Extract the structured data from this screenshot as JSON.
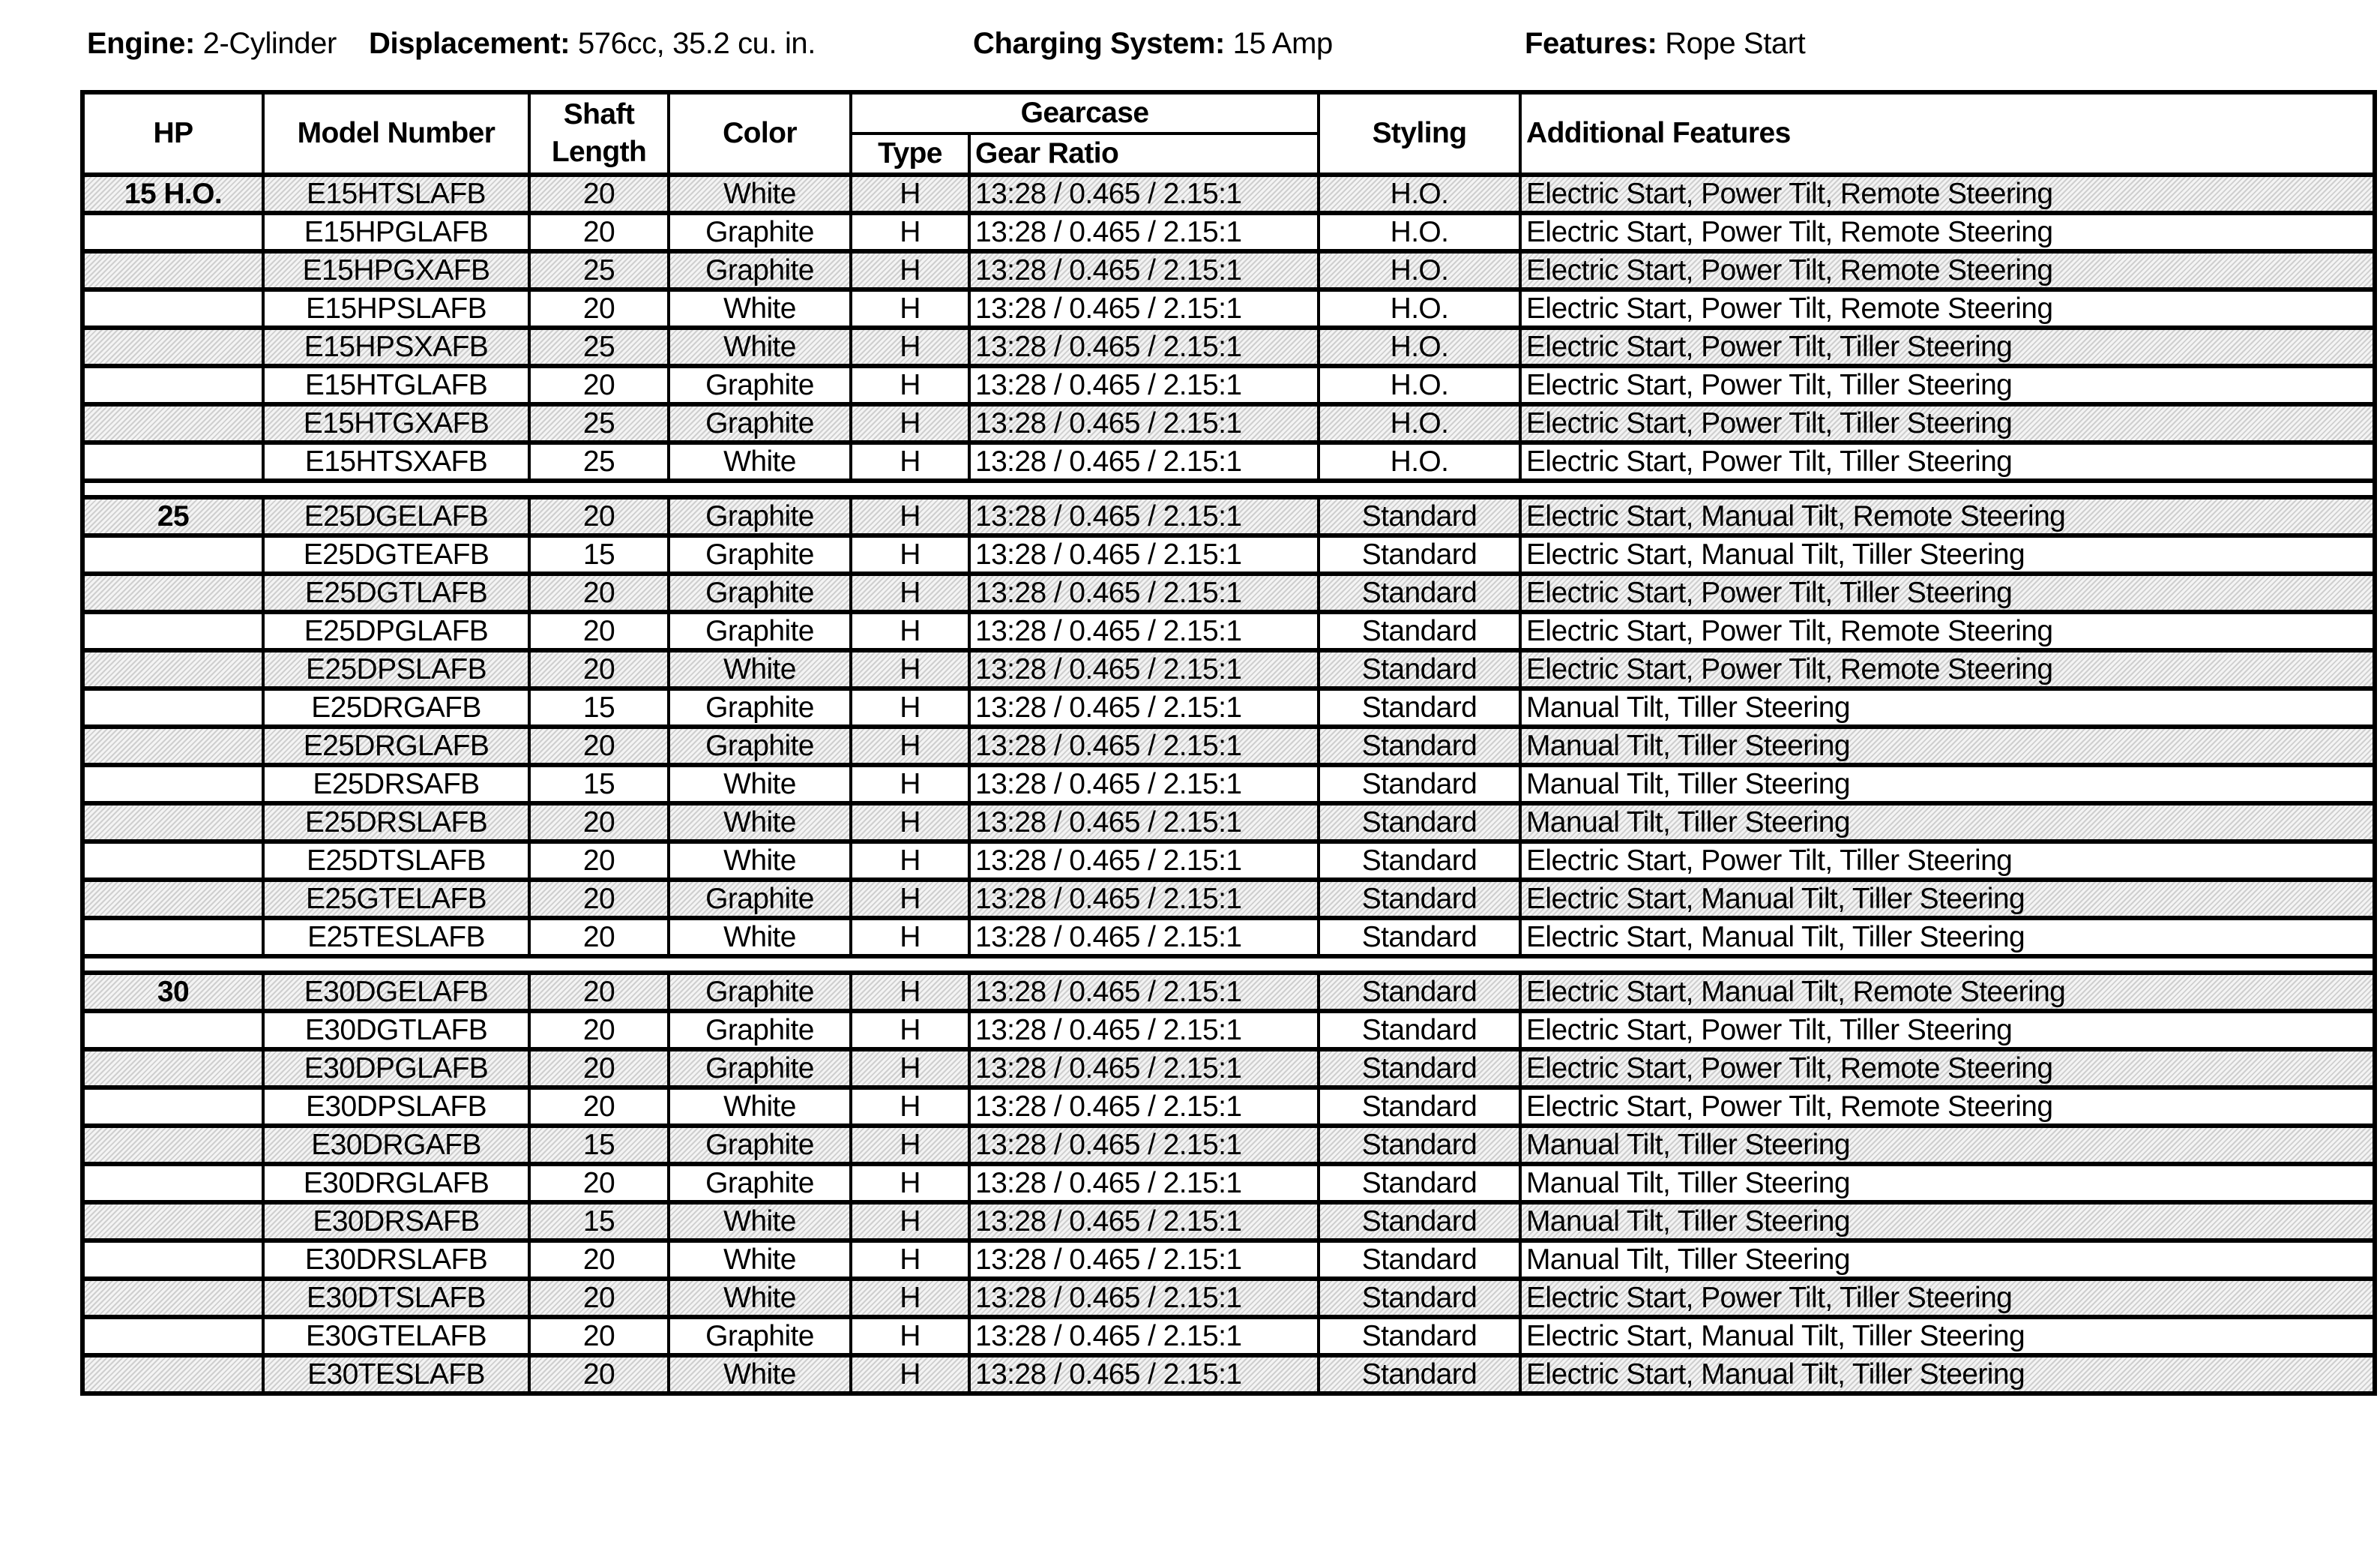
{
  "specs": {
    "engine_label": "Engine:",
    "engine_value": "2-Cylinder",
    "displacement_label": "Displacement:",
    "displacement_value": "576cc, 35.2 cu. in.",
    "charging_label": "Charging System:",
    "charging_value": "15 Amp",
    "features_label": "Features:",
    "features_value": "Rope Start"
  },
  "headers": {
    "hp": "HP",
    "model": "Model Number",
    "shaft1": "Shaft",
    "shaft2": "Length",
    "color": "Color",
    "gearcase": "Gearcase",
    "type": "Type",
    "ratio": "Gear Ratio",
    "styling": "Styling",
    "features": "Additional Features"
  },
  "groups": [
    {
      "hp": "15 H.O.",
      "rows": [
        [
          "E15HTSLAFB",
          "20",
          "White",
          "H",
          "13:28 / 0.465 / 2.15:1",
          "H.O.",
          "Electric Start, Power Tilt, Remote Steering"
        ],
        [
          "E15HPGLAFB",
          "20",
          "Graphite",
          "H",
          "13:28 / 0.465 / 2.15:1",
          "H.O.",
          "Electric Start, Power Tilt, Remote Steering"
        ],
        [
          "E15HPGXAFB",
          "25",
          "Graphite",
          "H",
          "13:28 / 0.465 / 2.15:1",
          "H.O.",
          "Electric Start, Power Tilt, Remote Steering"
        ],
        [
          "E15HPSLAFB",
          "20",
          "White",
          "H",
          "13:28 / 0.465 / 2.15:1",
          "H.O.",
          "Electric Start, Power Tilt, Remote Steering"
        ],
        [
          "E15HPSXAFB",
          "25",
          "White",
          "H",
          "13:28 / 0.465 / 2.15:1",
          "H.O.",
          "Electric Start, Power Tilt, Tiller Steering"
        ],
        [
          "E15HTGLAFB",
          "20",
          "Graphite",
          "H",
          "13:28 / 0.465 / 2.15:1",
          "H.O.",
          "Electric Start, Power Tilt, Tiller Steering"
        ],
        [
          "E15HTGXAFB",
          "25",
          "Graphite",
          "H",
          "13:28 / 0.465 / 2.15:1",
          "H.O.",
          "Electric Start, Power Tilt, Tiller Steering"
        ],
        [
          "E15HTSXAFB",
          "25",
          "White",
          "H",
          "13:28 / 0.465 / 2.15:1",
          "H.O.",
          "Electric Start, Power Tilt, Tiller Steering"
        ]
      ]
    },
    {
      "hp": "25",
      "rows": [
        [
          "E25DGELAFB",
          "20",
          "Graphite",
          "H",
          "13:28 / 0.465 / 2.15:1",
          "Standard",
          "Electric Start, Manual Tilt, Remote Steering"
        ],
        [
          "E25DGTEAFB",
          "15",
          "Graphite",
          "H",
          "13:28 / 0.465 / 2.15:1",
          "Standard",
          "Electric Start, Manual Tilt, Tiller Steering"
        ],
        [
          "E25DGTLAFB",
          "20",
          "Graphite",
          "H",
          "13:28 / 0.465 / 2.15:1",
          "Standard",
          "Electric Start, Power Tilt, Tiller Steering"
        ],
        [
          "E25DPGLAFB",
          "20",
          "Graphite",
          "H",
          "13:28 / 0.465 / 2.15:1",
          "Standard",
          "Electric Start, Power Tilt, Remote Steering"
        ],
        [
          "E25DPSLAFB",
          "20",
          "White",
          "H",
          "13:28 / 0.465 / 2.15:1",
          "Standard",
          "Electric Start, Power Tilt, Remote Steering"
        ],
        [
          "E25DRGAFB",
          "15",
          "Graphite",
          "H",
          "13:28 / 0.465 / 2.15:1",
          "Standard",
          "Manual Tilt, Tiller Steering"
        ],
        [
          "E25DRGLAFB",
          "20",
          "Graphite",
          "H",
          "13:28 / 0.465 / 2.15:1",
          "Standard",
          "Manual Tilt, Tiller Steering"
        ],
        [
          "E25DRSAFB",
          "15",
          "White",
          "H",
          "13:28 / 0.465 / 2.15:1",
          "Standard",
          "Manual Tilt, Tiller Steering"
        ],
        [
          "E25DRSLAFB",
          "20",
          "White",
          "H",
          "13:28 / 0.465 / 2.15:1",
          "Standard",
          "Manual Tilt, Tiller Steering"
        ],
        [
          "E25DTSLAFB",
          "20",
          "White",
          "H",
          "13:28 / 0.465 / 2.15:1",
          "Standard",
          "Electric Start, Power Tilt, Tiller Steering"
        ],
        [
          "E25GTELAFB",
          "20",
          "Graphite",
          "H",
          "13:28 / 0.465 / 2.15:1",
          "Standard",
          "Electric Start, Manual Tilt, Tiller Steering"
        ],
        [
          "E25TESLAFB",
          "20",
          "White",
          "H",
          "13:28 / 0.465 / 2.15:1",
          "Standard",
          "Electric Start, Manual Tilt, Tiller Steering"
        ]
      ]
    },
    {
      "hp": "30",
      "rows": [
        [
          "E30DGELAFB",
          "20",
          "Graphite",
          "H",
          "13:28 / 0.465 / 2.15:1",
          "Standard",
          "Electric Start, Manual Tilt, Remote Steering"
        ],
        [
          "E30DGTLAFB",
          "20",
          "Graphite",
          "H",
          "13:28 / 0.465 / 2.15:1",
          "Standard",
          "Electric Start, Power Tilt, Tiller Steering"
        ],
        [
          "E30DPGLAFB",
          "20",
          "Graphite",
          "H",
          "13:28 / 0.465 / 2.15:1",
          "Standard",
          "Electric Start, Power Tilt, Remote Steering"
        ],
        [
          "E30DPSLAFB",
          "20",
          "White",
          "H",
          "13:28 / 0.465 / 2.15:1",
          "Standard",
          "Electric Start, Power Tilt, Remote Steering"
        ],
        [
          "E30DRGAFB",
          "15",
          "Graphite",
          "H",
          "13:28 / 0.465 / 2.15:1",
          "Standard",
          "Manual Tilt, Tiller Steering"
        ],
        [
          "E30DRGLAFB",
          "20",
          "Graphite",
          "H",
          "13:28 / 0.465 / 2.15:1",
          "Standard",
          "Manual Tilt, Tiller Steering"
        ],
        [
          "E30DRSAFB",
          "15",
          "White",
          "H",
          "13:28 / 0.465 / 2.15:1",
          "Standard",
          "Manual Tilt, Tiller Steering"
        ],
        [
          "E30DRSLAFB",
          "20",
          "White",
          "H",
          "13:28 / 0.465 / 2.15:1",
          "Standard",
          "Manual Tilt, Tiller Steering"
        ],
        [
          "E30DTSLAFB",
          "20",
          "White",
          "H",
          "13:28 / 0.465 / 2.15:1",
          "Standard",
          "Electric Start, Power Tilt, Tiller Steering"
        ],
        [
          "E30GTELAFB",
          "20",
          "Graphite",
          "H",
          "13:28 / 0.465 / 2.15:1",
          "Standard",
          "Electric Start, Manual Tilt, Tiller Steering"
        ],
        [
          "E30TESLAFB",
          "20",
          "White",
          "H",
          "13:28 / 0.465 / 2.15:1",
          "Standard",
          "Electric Start, Manual Tilt, Tiller Steering"
        ]
      ]
    }
  ]
}
